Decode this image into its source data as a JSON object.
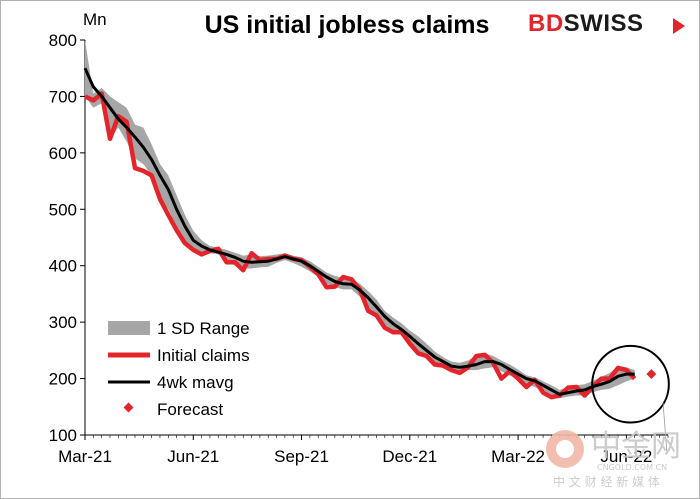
{
  "title": "US initial jobless claims",
  "brand": {
    "part1": "BD",
    "part2": "SWISS"
  },
  "watermark": {
    "main": "中金网",
    "sub": "CNGOLD.COM.CN",
    "line": "中 文 财 经 新 媒 体"
  },
  "colors": {
    "range": "#a6a6a6",
    "initial": "#e3242b",
    "mavg": "#000000",
    "forecast": "#e3242b",
    "highlight": "#000000"
  },
  "chart_data": {
    "type": "line",
    "title": "US initial jobless claims",
    "ylabel": "Mn",
    "ylim": [
      100,
      800
    ],
    "yticks": [
      "100",
      "200",
      "300",
      "400",
      "500",
      "600",
      "700",
      "800"
    ],
    "xticks": [
      "Mar-21",
      "Jun-21",
      "Sep-21",
      "Dec-21",
      "Mar-22",
      "Jun-22"
    ],
    "xrange_weeks": [
      0,
      70
    ],
    "legend": {
      "position": "bottom-left",
      "items": [
        "1 SD Range",
        "Initial claims",
        "4wk mavg",
        "Forecast"
      ]
    },
    "series": [
      {
        "name": "Initial claims",
        "x": [
          0,
          1,
          2,
          3,
          4,
          5,
          6,
          7,
          8,
          9,
          10,
          11,
          12,
          13,
          14,
          15,
          16,
          17,
          18,
          19,
          20,
          21,
          22,
          23,
          24,
          25,
          26,
          27,
          28,
          29,
          30,
          31,
          32,
          33,
          34,
          35,
          36,
          37,
          38,
          39,
          40,
          41,
          42,
          43,
          44,
          45,
          46,
          47,
          48,
          49,
          50,
          51,
          52,
          53,
          54,
          55,
          56,
          57,
          58,
          59,
          60,
          61,
          62,
          63,
          64,
          65,
          66
        ],
        "values": [
          700,
          693,
          705,
          625,
          665,
          655,
          573,
          568,
          560,
          518,
          490,
          463,
          440,
          428,
          420,
          426,
          430,
          406,
          406,
          392,
          422,
          410,
          412,
          412,
          418,
          412,
          410,
          398,
          385,
          362,
          363,
          380,
          376,
          358,
          320,
          312,
          290,
          282,
          282,
          262,
          245,
          240,
          225,
          223,
          215,
          210,
          220,
          240,
          242,
          228,
          200,
          213,
          200,
          185,
          198,
          175,
          167,
          170,
          184,
          185,
          170,
          186,
          200,
          200,
          219,
          215,
          200
        ],
        "color": "#e3242b"
      },
      {
        "name": "4wk mavg",
        "x": [
          0,
          1,
          2,
          3,
          4,
          5,
          6,
          7,
          8,
          9,
          10,
          11,
          12,
          13,
          14,
          15,
          16,
          17,
          18,
          19,
          20,
          21,
          22,
          23,
          24,
          25,
          26,
          27,
          28,
          29,
          30,
          31,
          32,
          33,
          34,
          35,
          36,
          37,
          38,
          39,
          40,
          41,
          42,
          43,
          44,
          45,
          46,
          47,
          48,
          49,
          50,
          51,
          52,
          53,
          54,
          55,
          56,
          57,
          58,
          59,
          60,
          61,
          62,
          63,
          64,
          65,
          66
        ],
        "values": [
          750,
          717,
          700,
          680,
          660,
          645,
          628,
          610,
          588,
          560,
          535,
          500,
          470,
          445,
          435,
          428,
          424,
          420,
          415,
          408,
          406,
          407,
          408,
          412,
          416,
          412,
          408,
          400,
          390,
          380,
          372,
          368,
          367,
          357,
          343,
          327,
          310,
          297,
          287,
          275,
          262,
          250,
          238,
          230,
          222,
          220,
          222,
          225,
          230,
          230,
          225,
          216,
          208,
          200,
          196,
          188,
          180,
          172,
          175,
          178,
          180,
          186,
          190,
          195,
          204,
          208,
          208
        ],
        "color": "#000000"
      },
      {
        "name": "1 SD Range",
        "x": [
          0,
          1,
          2,
          3,
          4,
          5,
          6,
          7,
          8,
          9,
          10,
          11,
          12,
          13,
          14,
          15,
          16,
          17,
          18,
          19,
          20,
          21,
          22,
          23,
          24,
          25,
          26,
          27,
          28,
          29,
          30,
          31,
          32,
          33,
          34,
          35,
          36,
          37,
          38,
          39,
          40,
          41,
          42,
          43,
          44,
          45,
          46,
          47,
          48,
          49,
          50,
          51,
          52,
          53,
          54,
          55,
          56,
          57,
          58,
          59,
          60,
          61,
          62,
          63,
          64,
          65,
          66
        ],
        "upper": [
          800,
          705,
          715,
          700,
          690,
          680,
          650,
          645,
          615,
          580,
          560,
          525,
          490,
          462,
          445,
          435,
          432,
          428,
          423,
          418,
          420,
          417,
          418,
          420,
          422,
          418,
          415,
          408,
          398,
          388,
          382,
          378,
          376,
          368,
          355,
          340,
          320,
          308,
          298,
          285,
          275,
          262,
          248,
          238,
          230,
          228,
          232,
          242,
          245,
          240,
          232,
          225,
          216,
          206,
          202,
          195,
          188,
          180,
          185,
          188,
          190,
          196,
          203,
          210,
          222,
          220,
          215
        ],
        "lower": [
          700,
          680,
          688,
          625,
          645,
          620,
          590,
          580,
          560,
          520,
          500,
          470,
          445,
          430,
          422,
          422,
          420,
          410,
          400,
          395,
          395,
          397,
          398,
          405,
          410,
          405,
          398,
          390,
          380,
          368,
          362,
          358,
          358,
          345,
          325,
          312,
          295,
          285,
          278,
          262,
          250,
          240,
          225,
          222,
          215,
          212,
          215,
          215,
          218,
          220,
          213,
          205,
          200,
          190,
          185,
          178,
          170,
          165,
          168,
          170,
          170,
          176,
          180,
          182,
          188,
          195,
          200
        ]
      }
    ],
    "forecast": {
      "x": 68,
      "value": 208
    },
    "highlight_circle": {
      "center_x": 65.5,
      "center_y": 190,
      "radius_weeks": 4.6
    }
  }
}
